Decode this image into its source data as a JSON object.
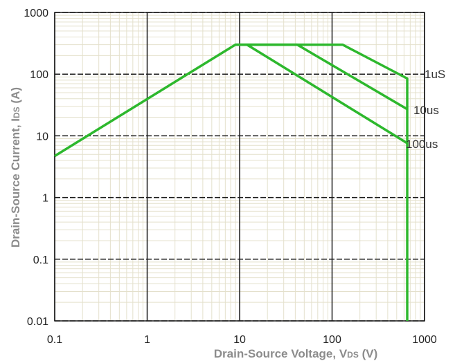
{
  "chart_data": {
    "type": "line",
    "xlabel": "Drain-Source Voltage, VDS (V)",
    "xlabel_parts": {
      "main": "Drain-Source Voltage, V",
      "sub": "DS",
      "unit": " (V)"
    },
    "ylabel": "Drain-Source Current, IDS (A)",
    "ylabel_parts": {
      "main": "Drain-Source Current, I",
      "sub": "DS",
      "unit": " (A)"
    },
    "xscale": "log",
    "yscale": "log",
    "xlim": [
      0.1,
      1000
    ],
    "ylim": [
      0.01,
      1000
    ],
    "x_ticks": [
      {
        "value": 0.1,
        "label": "0.1"
      },
      {
        "value": 1,
        "label": "1"
      },
      {
        "value": 10,
        "label": "10"
      },
      {
        "value": 100,
        "label": "100"
      },
      {
        "value": 1000,
        "label": "1000"
      }
    ],
    "y_ticks": [
      {
        "value": 0.01,
        "label": "0.01"
      },
      {
        "value": 0.1,
        "label": "0.1"
      },
      {
        "value": 1,
        "label": "1"
      },
      {
        "value": 10,
        "label": "10"
      },
      {
        "value": 100,
        "label": "100"
      },
      {
        "value": 1000,
        "label": "1000"
      }
    ],
    "grid": true,
    "grid_style": {
      "major_x": "solid",
      "major_y": "dashed",
      "minor": "solid"
    },
    "colors": {
      "line": "#2db82d",
      "major_grid": "#1a1a1a",
      "minor_grid": "#e4e0cc",
      "axis_title": "#8c8c8c"
    },
    "series": [
      {
        "name": "1uS",
        "x": [
          0.1,
          9,
          130,
          650,
          650,
          650
        ],
        "y": [
          4.7,
          300,
          300,
          85,
          0.01,
          0.01
        ]
      },
      {
        "name": "10us",
        "x": [
          9,
          42,
          650
        ],
        "y": [
          300,
          300,
          27
        ]
      },
      {
        "name": "100us",
        "x": [
          12,
          650
        ],
        "y": [
          300,
          7.6
        ]
      }
    ]
  }
}
